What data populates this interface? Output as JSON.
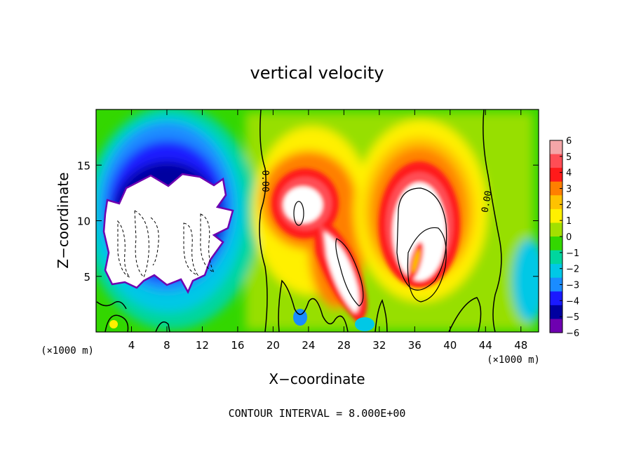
{
  "chart_data": {
    "type": "heatmap",
    "title": "vertical velocity",
    "xlabel": "X−coordinate",
    "ylabel": "Z−coordinate",
    "x_unit_left": "(×1000 m)",
    "x_unit_right": "(×1000 m)",
    "footer": "CONTOUR INTERVAL = 8.000E+00",
    "xlim": [
      0,
      50
    ],
    "ylim": [
      0,
      20
    ],
    "x_ticks": [
      "4",
      "8",
      "12",
      "16",
      "20",
      "24",
      "28",
      "32",
      "36",
      "40",
      "44",
      "48"
    ],
    "y_ticks": [
      "5",
      "10",
      "15"
    ],
    "contour_labels": [
      "0.00",
      "0.00"
    ],
    "colorbar_ticks": [
      "6",
      "5",
      "4",
      "3",
      "2",
      "1",
      "0",
      "−1",
      "−2",
      "−3",
      "−4",
      "−5",
      "−6"
    ],
    "colorbar_colors": [
      "#f4a6a8",
      "#ff4d55",
      "#ff1a1a",
      "#ff7f00",
      "#ffc200",
      "#fff000",
      "#a2e000",
      "#33d700",
      "#00d69e",
      "#00c8e6",
      "#1a8cff",
      "#1a1aff",
      "#0000a0",
      "#6e00b0"
    ],
    "grid": false
  }
}
